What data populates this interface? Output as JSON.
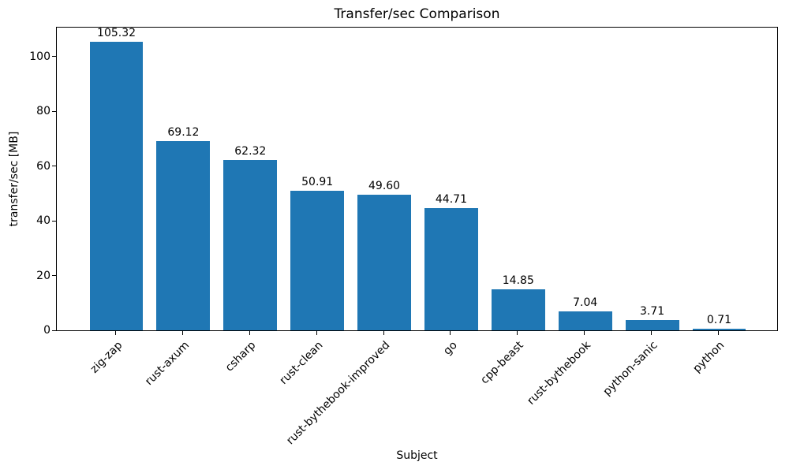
{
  "chart_data": {
    "type": "bar",
    "title": "Transfer/sec Comparison",
    "xlabel": "Subject",
    "ylabel": "transfer/sec [MB]",
    "categories": [
      "zig-zap",
      "rust-axum",
      "csharp",
      "rust-clean",
      "rust-bythebook-improved",
      "go",
      "cpp-beast",
      "rust-bythebook",
      "python-sanic",
      "python"
    ],
    "values": [
      105.32,
      69.12,
      62.32,
      50.91,
      49.6,
      44.71,
      14.85,
      7.04,
      3.71,
      0.71
    ],
    "value_labels": [
      "105.32",
      "69.12",
      "62.32",
      "50.91",
      "49.60",
      "44.71",
      "14.85",
      "7.04",
      "3.71",
      "0.71"
    ],
    "yticks": [
      0,
      20,
      40,
      60,
      80,
      100
    ],
    "ylim": [
      0,
      110.59
    ],
    "x_tick_rotation_deg": 45,
    "bar_color": "#1f77b4",
    "background_color": "#ffffff",
    "text_color": "#000000",
    "grid": false,
    "legend": null
  }
}
